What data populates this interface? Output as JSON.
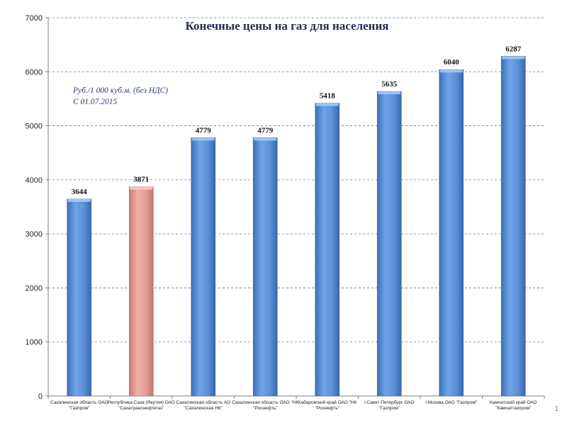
{
  "chart_data": {
    "type": "bar",
    "title": "Конечные цены на газ для населения",
    "note_lines": [
      "Руб./1 000 куб.м. (без НДС)",
      "С 01.07.2015"
    ],
    "categories": [
      [
        "Сахалинская область ОАО",
        "\"Газпром\""
      ],
      [
        "Республика Саха (Якутия) ОАО",
        "\"Сахатранснефтегаз\""
      ],
      [
        "Сахалинская область АО",
        "\"Сахалинская НК\""
      ],
      [
        "Сахалинская область ОАО \"НК",
        "\"Роснефть\""
      ],
      [
        "Хабаровский край ОАО \"НК",
        "\"Роснефть\""
      ],
      [
        "г.Санкт-Петербург ОАО",
        "\"Газпром\""
      ],
      [
        "г.Москва ОАО \"Газпром\""
      ],
      [
        "Камчатский край ОАО",
        "\"Камчатгазпром\""
      ]
    ],
    "values": [
      3644,
      3871,
      4779,
      4779,
      5418,
      5635,
      6040,
      6287
    ],
    "highlight_index": 1,
    "ylim": [
      0,
      7000
    ],
    "yticks": [
      0,
      1000,
      2000,
      3000,
      4000,
      5000,
      6000,
      7000
    ],
    "grid": true,
    "xlabel": "",
    "ylabel": "",
    "colors": {
      "bar": "#5b93d9",
      "bar_highlight": "#e8a09b",
      "grid": "#4f7fc0"
    }
  },
  "page_number": "1"
}
